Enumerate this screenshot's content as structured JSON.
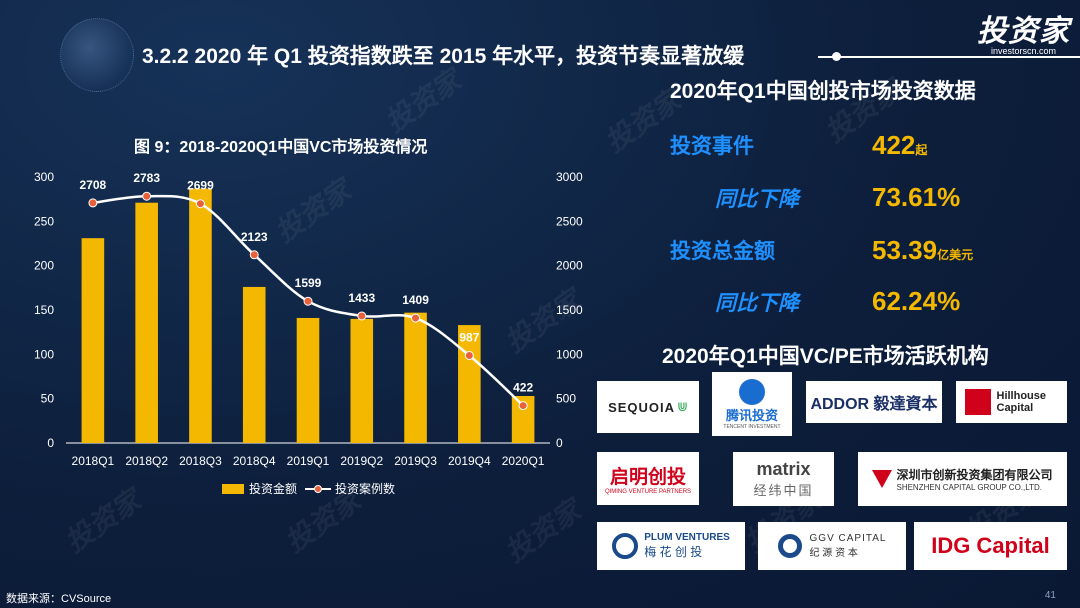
{
  "header": {
    "title": "3.2.2 2020 年 Q1 投资指数跌至 2015 年水平，投资节奏显著放缓",
    "logo_main": "投资家",
    "logo_sub": "investorscn.com"
  },
  "chart_data": {
    "type": "bar",
    "title": "图 9：2018-2020Q1中国VC市场投资情况",
    "categories": [
      "2018Q1",
      "2018Q2",
      "2018Q3",
      "2018Q4",
      "2019Q1",
      "2019Q2",
      "2019Q3",
      "2019Q4",
      "2020Q1"
    ],
    "series": [
      {
        "name": "投资金额",
        "type": "bar",
        "axis": "left",
        "values": [
          231,
          271,
          287,
          176,
          141,
          140,
          147,
          133,
          53
        ]
      },
      {
        "name": "投资案例数",
        "type": "line",
        "axis": "right",
        "values": [
          2708,
          2783,
          2699,
          2123,
          1599,
          1433,
          1409,
          987,
          422
        ]
      }
    ],
    "y_left": {
      "ylim": [
        0,
        300
      ],
      "ticks": [
        0,
        50,
        100,
        150,
        200,
        250,
        300
      ]
    },
    "y_right": {
      "ylim": [
        0,
        3000
      ],
      "ticks": [
        0,
        500,
        1000,
        1500,
        2000,
        2500,
        3000
      ]
    },
    "legend_position": "bottom",
    "colors": {
      "bar": "#f5b800",
      "line": "#ffffff",
      "marker": "#e8613a"
    }
  },
  "right_panel": {
    "title": "2020年Q1中国创投市场投资数据",
    "stats": [
      {
        "label": "投资事件",
        "value": "422",
        "unit": "起"
      },
      {
        "label": "同比下降",
        "value": "73.61%",
        "unit": ""
      },
      {
        "label": "投资总金额",
        "value": "53.39",
        "unit": "亿美元"
      },
      {
        "label": "同比下降",
        "value": "62.24%",
        "unit": ""
      }
    ],
    "institutions_title": "2020年Q1中国VC/PE市场活跃机构",
    "institutions": [
      {
        "name": "SEQUOIA"
      },
      {
        "name": "腾讯投资",
        "sub": "TENCENT INVESTMENT"
      },
      {
        "name": "ADDOR 毅達資本"
      },
      {
        "name": "Hillhouse Capital"
      },
      {
        "name": "启明创投",
        "sub": "QIMING VENTURE PARTNERS"
      },
      {
        "name": "matrix",
        "sub": "经纬中国"
      },
      {
        "name": "深圳市创新投资集团有限公司",
        "sub": "SHENZHEN CAPITAL GROUP CO.,LTD."
      },
      {
        "name": "PLUM VENTURES",
        "sub": "梅 花 创 投"
      },
      {
        "name": "GGV CAPITAL",
        "sub": "纪 源 资 本"
      },
      {
        "name": "IDG Capital"
      }
    ]
  },
  "footer": {
    "source": "数据来源：CVSource",
    "page": "41"
  },
  "colors": {
    "background": "#0d1f3c",
    "accent_blue": "#1e90ff",
    "accent_gold": "#f5b800"
  }
}
